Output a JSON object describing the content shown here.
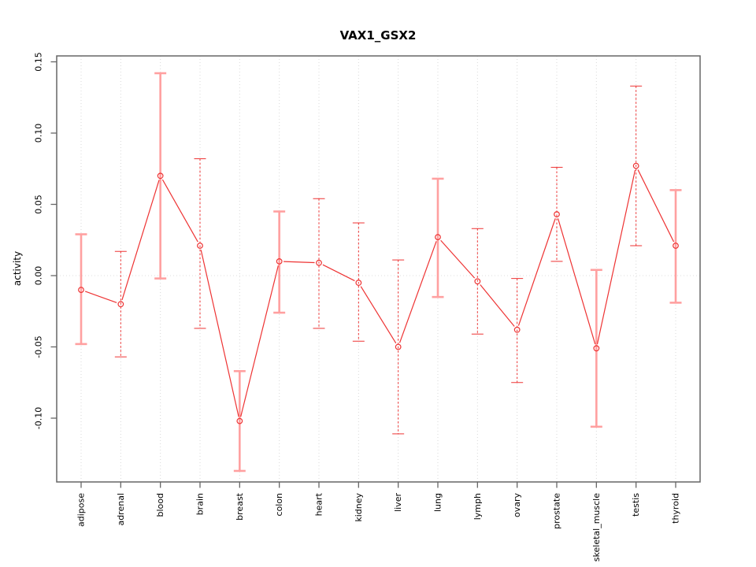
{
  "window": {
    "background_color": "#ffffff"
  },
  "chart_data": {
    "type": "line",
    "subtype": "points-with-error-bars",
    "title": "VAX1_GSX2",
    "xlabel": "",
    "ylabel": "activity",
    "legend": "none",
    "grid": "vertical dotted gridline at each category; horizontal dotted line at y=0",
    "categories": [
      "adipose",
      "adrenal",
      "blood",
      "brain",
      "breast",
      "colon",
      "heart",
      "kidney",
      "liver",
      "lung",
      "lymph",
      "ovary",
      "prostate",
      "skeletal_muscle",
      "testis",
      "thyroid"
    ],
    "values": [
      -0.01,
      -0.02,
      0.07,
      0.021,
      -0.102,
      0.01,
      0.009,
      -0.005,
      -0.05,
      0.027,
      -0.004,
      -0.038,
      0.043,
      -0.051,
      0.077,
      0.021
    ],
    "error_upper": [
      0.029,
      0.017,
      0.142,
      0.082,
      -0.067,
      0.045,
      0.054,
      0.037,
      0.011,
      0.068,
      0.033,
      -0.002,
      0.076,
      0.004,
      0.133,
      0.06
    ],
    "error_lower": [
      -0.048,
      -0.057,
      -0.002,
      -0.037,
      -0.137,
      -0.026,
      -0.037,
      -0.046,
      -0.111,
      -0.015,
      -0.041,
      -0.075,
      0.01,
      -0.106,
      0.021,
      -0.019
    ],
    "error_bar_styles": [
      "solid",
      "dashed",
      "solid",
      "dashed",
      "solid",
      "solid",
      "dashed",
      "dashed",
      "dashed",
      "solid",
      "dashed",
      "dashed",
      "dashed",
      "solid",
      "dashed",
      "solid"
    ],
    "yticks": [
      0.15,
      0.1,
      0.05,
      0.0,
      -0.05,
      -0.1
    ],
    "ytick_labels": [
      "0.15",
      "0.10",
      "0.05",
      "0.00",
      "-0.05",
      "-0.10"
    ],
    "ylim": [
      -0.145,
      0.154
    ],
    "marker": "open-circle",
    "colors": {
      "line": "#ee3333",
      "point": "#ee3333",
      "error_solid": "#ffa0a0",
      "error_dashed": "#ee3333",
      "grid": "#d9d9d9",
      "zero_line": "#dcdcdc",
      "box": "#666666",
      "text": "#000000"
    }
  }
}
